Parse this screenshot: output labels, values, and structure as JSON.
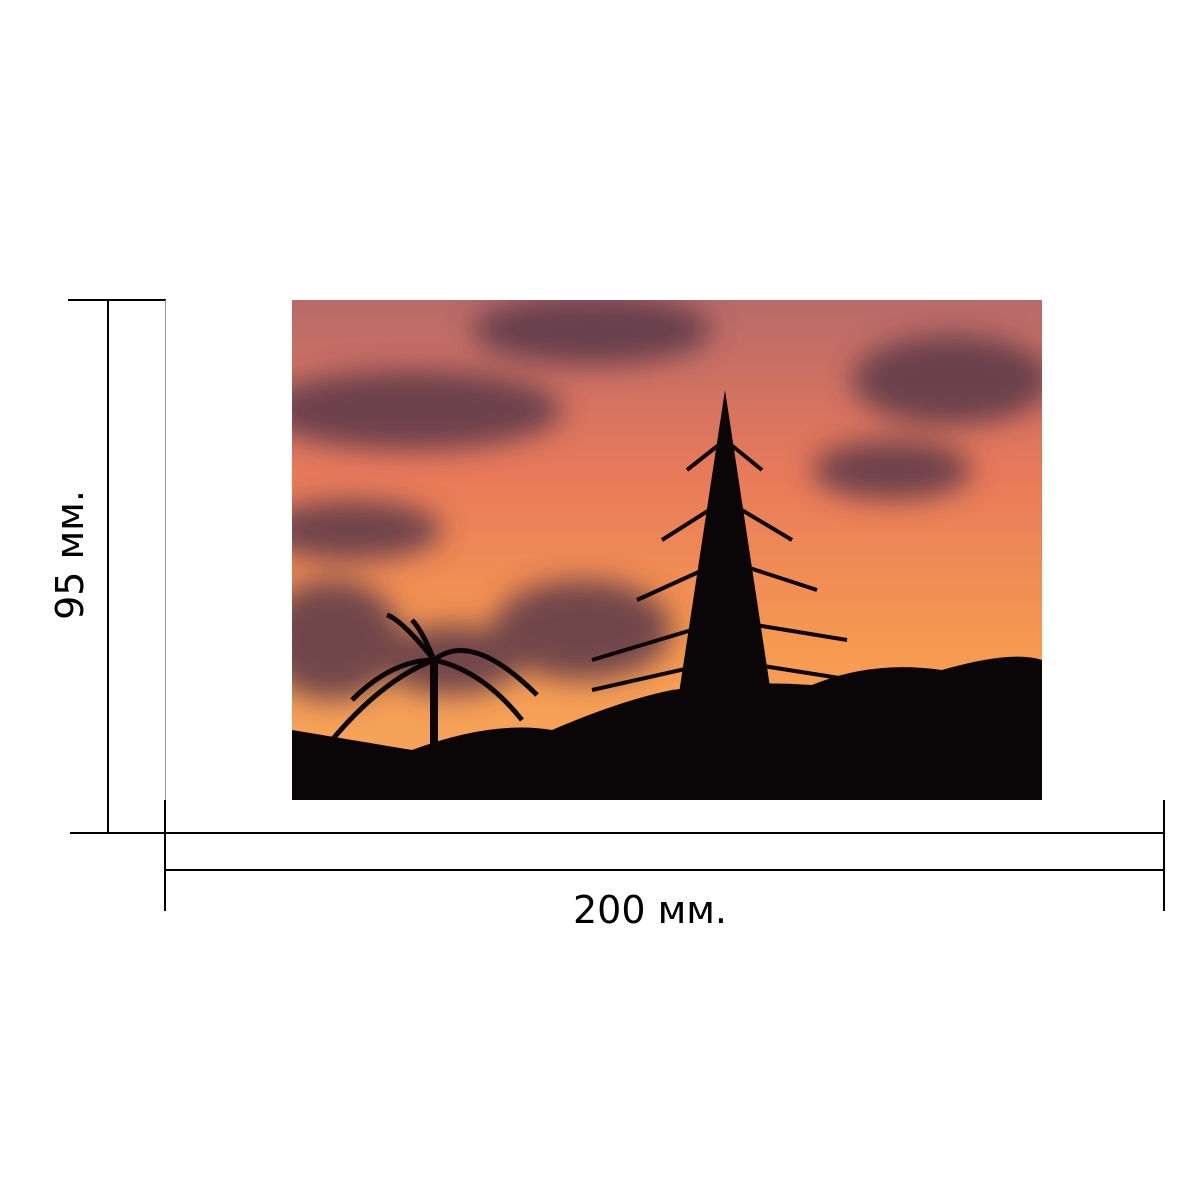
{
  "dimensions": {
    "width_label": "200 мм.",
    "height_label": "95 мм."
  },
  "photo": {
    "subject": "sunset-silhouette-trees",
    "colors": {
      "sky": "#f08050",
      "cloud": "#5a3848",
      "silhouette": "#0a0506"
    }
  }
}
